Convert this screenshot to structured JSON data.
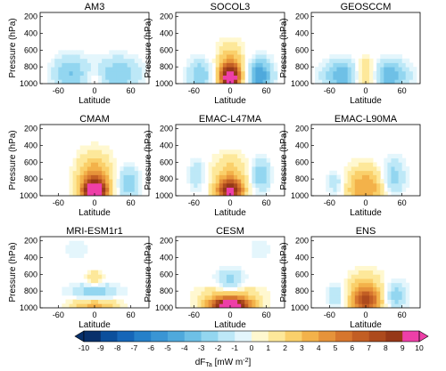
{
  "colorbar": {
    "ticks": [
      "-10",
      "-9",
      "-8",
      "-7",
      "-6",
      "-5",
      "-4",
      "-3",
      "-2",
      "-1",
      "0",
      "1",
      "2",
      "3",
      "4",
      "5",
      "6",
      "7",
      "8",
      "9",
      "10"
    ],
    "colors": [
      "#08306b",
      "#0b4f9c",
      "#1666b8",
      "#2680c9",
      "#3a95d4",
      "#4fa9dc",
      "#6ec0e6",
      "#93d6f0",
      "#bde8f7",
      "#e4f6fc",
      "#fff8d0",
      "#fde89a",
      "#fad06b",
      "#f3b24a",
      "#e6933a",
      "#d6762e",
      "#c25e24",
      "#ad4a1d",
      "#963818",
      "#ee3fa8"
    ],
    "label": "dF",
    "label_sub": "Ta",
    "label_unit": " [mW m",
    "label_sup": "-2",
    "label_end": "]"
  },
  "chart_data": [
    {
      "type": "heatmap",
      "title": "AM3",
      "ylabel": "Pressure (hPa)",
      "xlabel": "Latitude",
      "yticks": [
        "200",
        "400",
        "600",
        "800",
        "1000"
      ],
      "xticks": [
        "-60",
        "0",
        "60"
      ],
      "xlim": [
        -90,
        90
      ],
      "ylim": [
        1000,
        150
      ],
      "blobs": [
        {
          "lat": -40,
          "p": 880,
          "w": 30,
          "h": 220,
          "v": -3
        },
        {
          "lat": 40,
          "p": 880,
          "w": 35,
          "h": 200,
          "v": -3
        },
        {
          "lat": 0,
          "p": 930,
          "w": 15,
          "h": 100,
          "v": 1
        }
      ]
    },
    {
      "type": "heatmap",
      "title": "SOCOL3",
      "ylabel": "Pressure (hPa)",
      "xlabel": "Latitude",
      "yticks": [
        "200",
        "400",
        "600",
        "800",
        "1000"
      ],
      "xticks": [
        "-60",
        "0",
        "60"
      ],
      "xlim": [
        -90,
        90
      ],
      "ylim": [
        1000,
        150
      ],
      "blobs": [
        {
          "lat": 0,
          "p": 930,
          "w": 16,
          "h": 140,
          "v": 9
        },
        {
          "lat": 0,
          "p": 800,
          "w": 22,
          "h": 260,
          "v": 4
        },
        {
          "lat": 50,
          "p": 900,
          "w": 20,
          "h": 200,
          "v": -5
        },
        {
          "lat": -50,
          "p": 900,
          "w": 20,
          "h": 200,
          "v": -3
        }
      ]
    },
    {
      "type": "heatmap",
      "title": "GEOSCCM",
      "ylabel": "Pressure (hPa)",
      "xlabel": "Latitude",
      "yticks": [
        "200",
        "400",
        "600",
        "800",
        "1000"
      ],
      "xticks": [
        "-60",
        "0",
        "60"
      ],
      "xlim": [
        -90,
        90
      ],
      "ylim": [
        1000,
        150
      ],
      "blobs": [
        {
          "lat": 0,
          "p": 900,
          "w": 18,
          "h": 220,
          "v": 3
        },
        {
          "lat": -40,
          "p": 900,
          "w": 30,
          "h": 180,
          "v": -4
        },
        {
          "lat": 40,
          "p": 900,
          "w": 30,
          "h": 180,
          "v": -4
        }
      ]
    },
    {
      "type": "heatmap",
      "title": "CMAM",
      "ylabel": "Pressure (hPa)",
      "xlabel": "Latitude",
      "yticks": [
        "200",
        "400",
        "600",
        "800",
        "1000"
      ],
      "xticks": [
        "-60",
        "0",
        "60"
      ],
      "xlim": [
        -90,
        90
      ],
      "ylim": [
        1000,
        150
      ],
      "blobs": [
        {
          "lat": 0,
          "p": 930,
          "w": 18,
          "h": 110,
          "v": 10
        },
        {
          "lat": 0,
          "p": 820,
          "w": 28,
          "h": 300,
          "v": 5
        },
        {
          "lat": 55,
          "p": 850,
          "w": 18,
          "h": 200,
          "v": -3
        }
      ]
    },
    {
      "type": "heatmap",
      "title": "EMAC-L47MA",
      "ylabel": "Pressure (hPa)",
      "xlabel": "Latitude",
      "yticks": [
        "200",
        "400",
        "600",
        "800",
        "1000"
      ],
      "xticks": [
        "-60",
        "0",
        "60"
      ],
      "xlim": [
        -90,
        90
      ],
      "ylim": [
        1000,
        150
      ],
      "blobs": [
        {
          "lat": 0,
          "p": 940,
          "w": 20,
          "h": 120,
          "v": 8
        },
        {
          "lat": 0,
          "p": 800,
          "w": 30,
          "h": 280,
          "v": 3
        },
        {
          "lat": 50,
          "p": 750,
          "w": 16,
          "h": 200,
          "v": -3
        },
        {
          "lat": -55,
          "p": 750,
          "w": 14,
          "h": 180,
          "v": -2
        }
      ]
    },
    {
      "type": "heatmap",
      "title": "EMAC-L90MA",
      "ylabel": "Pressure (hPa)",
      "xlabel": "Latitude",
      "yticks": [
        "200",
        "400",
        "600",
        "800",
        "1000"
      ],
      "xticks": [
        "-60",
        "0",
        "60"
      ],
      "xlim": [
        -90,
        90
      ],
      "ylim": [
        1000,
        150
      ],
      "blobs": [
        {
          "lat": 0,
          "p": 900,
          "w": 35,
          "h": 250,
          "v": 4
        },
        {
          "lat": 45,
          "p": 780,
          "w": 20,
          "h": 220,
          "v": -3
        },
        {
          "lat": -50,
          "p": 850,
          "w": 15,
          "h": 150,
          "v": -2
        }
      ]
    },
    {
      "type": "heatmap",
      "title": "MRI-ESM1r1",
      "ylabel": "Pressure (hPa)",
      "xlabel": "Latitude",
      "yticks": [
        "200",
        "400",
        "600",
        "800",
        "1000"
      ],
      "xticks": [
        "-60",
        "0",
        "60"
      ],
      "xlim": [
        -90,
        90
      ],
      "ylim": [
        1000,
        150
      ],
      "blobs": [
        {
          "lat": 0,
          "p": 960,
          "w": 40,
          "h": 90,
          "v": 4
        },
        {
          "lat": 0,
          "p": 820,
          "w": 40,
          "h": 120,
          "v": -3
        },
        {
          "lat": 0,
          "p": 650,
          "w": 15,
          "h": 100,
          "v": 2
        },
        {
          "lat": -30,
          "p": 300,
          "w": 25,
          "h": 120,
          "v": -1
        }
      ]
    },
    {
      "type": "heatmap",
      "title": "CESM",
      "ylabel": "Pressure (hPa)",
      "xlabel": "Latitude",
      "yticks": [
        "200",
        "400",
        "600",
        "800",
        "1000"
      ],
      "xticks": [
        "-60",
        "0",
        "60"
      ],
      "xlim": [
        -90,
        90
      ],
      "ylim": [
        1000,
        150
      ],
      "blobs": [
        {
          "lat": 0,
          "p": 970,
          "w": 30,
          "h": 80,
          "v": 10
        },
        {
          "lat": 0,
          "p": 880,
          "w": 45,
          "h": 160,
          "v": 4
        },
        {
          "lat": 0,
          "p": 700,
          "w": 25,
          "h": 160,
          "v": -3
        },
        {
          "lat": 50,
          "p": 300,
          "w": 20,
          "h": 120,
          "v": -1
        }
      ]
    },
    {
      "type": "heatmap",
      "title": "ENS",
      "ylabel": "Pressure (hPa)",
      "xlabel": "Latitude",
      "yticks": [
        "200",
        "400",
        "600",
        "800",
        "1000"
      ],
      "xticks": [
        "-60",
        "0",
        "60"
      ],
      "xlim": [
        -90,
        90
      ],
      "ylim": [
        1000,
        150
      ],
      "blobs": [
        {
          "lat": 0,
          "p": 930,
          "w": 24,
          "h": 140,
          "v": 6
        },
        {
          "lat": 0,
          "p": 780,
          "w": 30,
          "h": 220,
          "v": 3
        },
        {
          "lat": 50,
          "p": 850,
          "w": 18,
          "h": 160,
          "v": -3
        },
        {
          "lat": -50,
          "p": 850,
          "w": 16,
          "h": 150,
          "v": -2
        }
      ]
    }
  ]
}
